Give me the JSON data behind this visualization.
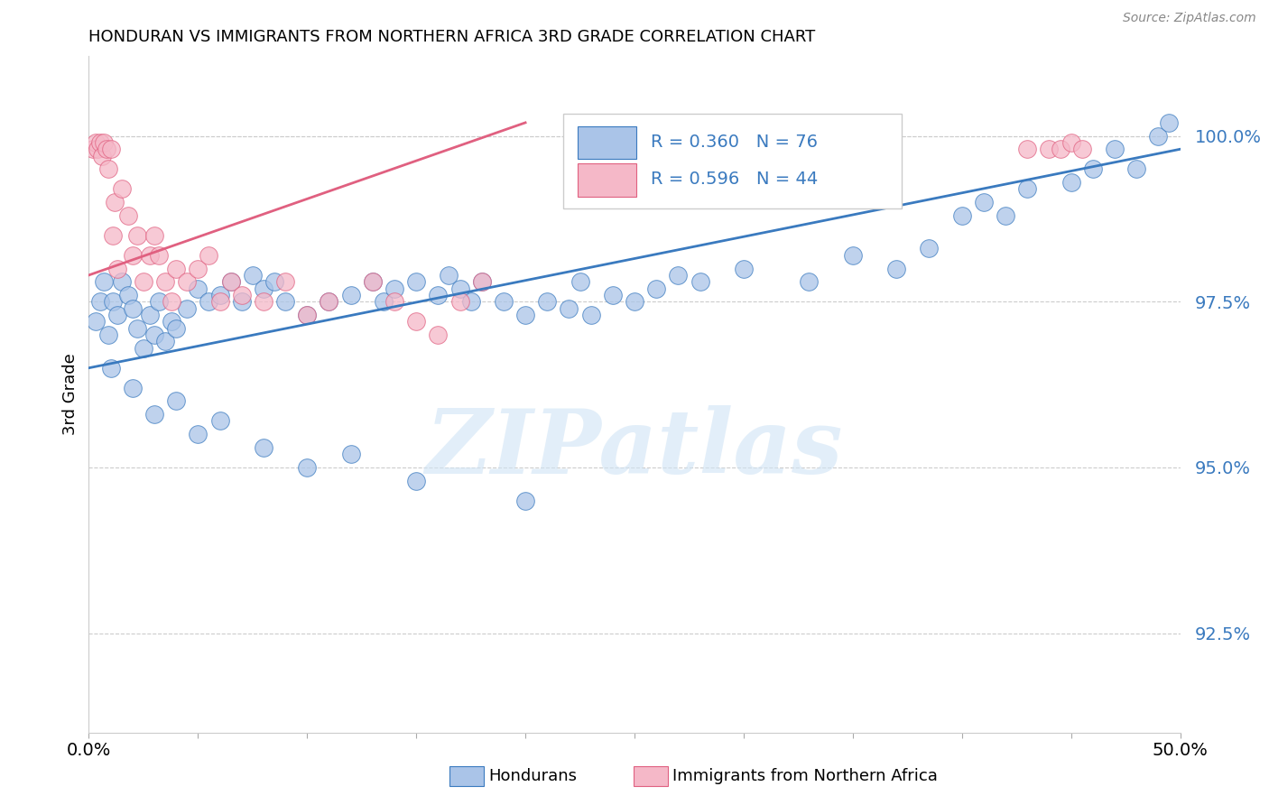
{
  "title": "HONDURAN VS IMMIGRANTS FROM NORTHERN AFRICA 3RD GRADE CORRELATION CHART",
  "source": "Source: ZipAtlas.com",
  "ylabel": "3rd Grade",
  "yaxis_ticks": [
    92.5,
    95.0,
    97.5,
    100.0
  ],
  "xlim": [
    0.0,
    50.0
  ],
  "ylim": [
    91.0,
    101.2
  ],
  "legend_blue_label": "Hondurans",
  "legend_pink_label": "Immigrants from Northern Africa",
  "R_blue": 0.36,
  "N_blue": 76,
  "R_pink": 0.596,
  "N_pink": 44,
  "blue_scatter_color": "#aac4e8",
  "pink_scatter_color": "#f5b8c8",
  "blue_line_color": "#3a7abf",
  "pink_line_color": "#e06080",
  "blue_line_y0": 96.5,
  "blue_line_y1": 99.8,
  "pink_line_y0": 97.9,
  "pink_line_y1": 100.2,
  "pink_line_x1": 20.0,
  "watermark_text": "ZIPatlas",
  "blue_x": [
    0.3,
    0.5,
    0.7,
    0.9,
    1.1,
    1.3,
    1.5,
    1.8,
    2.0,
    2.2,
    2.5,
    2.8,
    3.0,
    3.2,
    3.5,
    3.8,
    4.0,
    4.5,
    5.0,
    5.5,
    6.0,
    6.5,
    7.0,
    7.5,
    8.0,
    8.5,
    9.0,
    10.0,
    11.0,
    12.0,
    13.0,
    13.5,
    14.0,
    15.0,
    16.0,
    16.5,
    17.0,
    17.5,
    18.0,
    19.0,
    20.0,
    21.0,
    22.0,
    22.5,
    23.0,
    24.0,
    25.0,
    26.0,
    27.0,
    28.0,
    30.0,
    33.0,
    35.0,
    37.0,
    38.5,
    40.0,
    41.0,
    42.0,
    43.0,
    45.0,
    46.0,
    47.0,
    48.0,
    49.0,
    49.5,
    1.0,
    2.0,
    3.0,
    4.0,
    5.0,
    6.0,
    8.0,
    10.0,
    12.0,
    15.0,
    20.0
  ],
  "blue_y": [
    97.2,
    97.5,
    97.8,
    97.0,
    97.5,
    97.3,
    97.8,
    97.6,
    97.4,
    97.1,
    96.8,
    97.3,
    97.0,
    97.5,
    96.9,
    97.2,
    97.1,
    97.4,
    97.7,
    97.5,
    97.6,
    97.8,
    97.5,
    97.9,
    97.7,
    97.8,
    97.5,
    97.3,
    97.5,
    97.6,
    97.8,
    97.5,
    97.7,
    97.8,
    97.6,
    97.9,
    97.7,
    97.5,
    97.8,
    97.5,
    97.3,
    97.5,
    97.4,
    97.8,
    97.3,
    97.6,
    97.5,
    97.7,
    97.9,
    97.8,
    98.0,
    97.8,
    98.2,
    98.0,
    98.3,
    98.8,
    99.0,
    98.8,
    99.2,
    99.3,
    99.5,
    99.8,
    99.5,
    100.0,
    100.2,
    96.5,
    96.2,
    95.8,
    96.0,
    95.5,
    95.7,
    95.3,
    95.0,
    95.2,
    94.8,
    94.5
  ],
  "pink_x": [
    0.2,
    0.3,
    0.4,
    0.5,
    0.6,
    0.7,
    0.8,
    0.9,
    1.0,
    1.1,
    1.2,
    1.3,
    1.5,
    1.8,
    2.0,
    2.2,
    2.5,
    2.8,
    3.0,
    3.2,
    3.5,
    3.8,
    4.0,
    4.5,
    5.0,
    5.5,
    6.0,
    6.5,
    7.0,
    8.0,
    9.0,
    10.0,
    11.0,
    13.0,
    14.0,
    15.0,
    16.0,
    17.0,
    18.0,
    43.0,
    44.0,
    44.5,
    45.0,
    45.5
  ],
  "pink_y": [
    99.8,
    99.9,
    99.8,
    99.9,
    99.7,
    99.9,
    99.8,
    99.5,
    99.8,
    98.5,
    99.0,
    98.0,
    99.2,
    98.8,
    98.2,
    98.5,
    97.8,
    98.2,
    98.5,
    98.2,
    97.8,
    97.5,
    98.0,
    97.8,
    98.0,
    98.2,
    97.5,
    97.8,
    97.6,
    97.5,
    97.8,
    97.3,
    97.5,
    97.8,
    97.5,
    97.2,
    97.0,
    97.5,
    97.8,
    99.8,
    99.8,
    99.8,
    99.9,
    99.8
  ]
}
